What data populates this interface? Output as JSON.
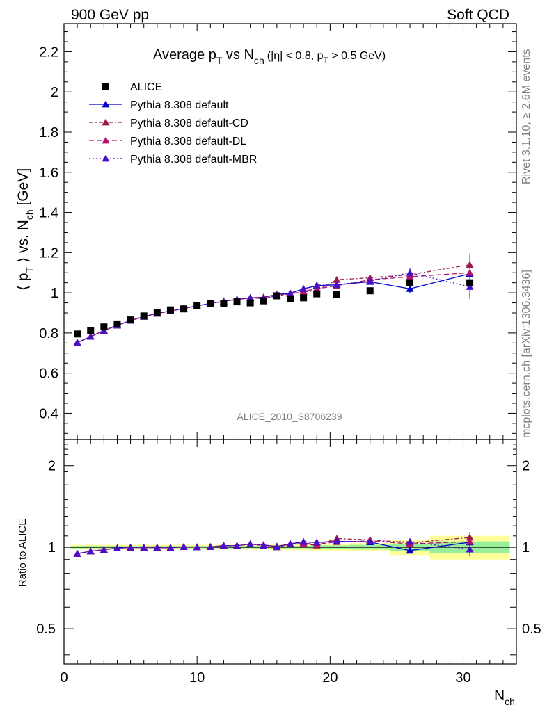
{
  "header": {
    "left": "900 GeV pp",
    "right": "Soft QCD"
  },
  "side_text": {
    "rivet": "Rivet 3.1.10, ≥ 2.6M events",
    "mcplots": "mcplots.cern.ch [arXiv:1306.3436]"
  },
  "chart_data": {
    "type": "scatter",
    "analysis_label": "ALICE_2010_S8706239",
    "title": {
      "t1": "Average p",
      "t1sub": "T",
      "t2": " vs N",
      "t2sub": "ch",
      "cut1": "(|η| < 0.8, p",
      "cut1sub": "T",
      "cut2": " > 0.5 GeV)"
    },
    "ylabel": {
      "a": "⟨ p",
      "asub": "T",
      "b": " ⟩ vs. N",
      "bsub": "ch",
      "c": " [GeV]"
    },
    "xlabel": {
      "main": "N",
      "sub": "ch"
    },
    "ratio_ylabel": "Ratio to ALICE",
    "xlim": [
      0,
      34
    ],
    "ylim": [
      0.27,
      2.34
    ],
    "ratio_ylim": [
      0.37,
      2.5
    ],
    "ratio_log": true,
    "x_ticks": [
      "0",
      "10",
      "20",
      "30"
    ],
    "y_ticks": [
      "0.4",
      "0.6",
      "0.8",
      "1",
      "1.2",
      "1.4",
      "1.6",
      "1.8",
      "2",
      "2.2"
    ],
    "ratio_ticks": [
      "0.5",
      "1",
      "2"
    ],
    "data": {
      "name": "ALICE",
      "x": [
        1,
        2,
        3,
        4,
        5,
        6,
        7,
        8,
        9,
        10,
        11,
        12,
        13,
        14,
        15,
        16,
        17,
        18,
        19,
        20.5,
        23,
        26,
        30.5
      ],
      "y": [
        0.795,
        0.81,
        0.83,
        0.845,
        0.865,
        0.885,
        0.9,
        0.915,
        0.92,
        0.935,
        0.945,
        0.945,
        0.955,
        0.95,
        0.96,
        0.985,
        0.97,
        0.975,
        0.995,
        0.99,
        1.01,
        1.05,
        1.05
      ],
      "bands": [
        {
          "x0": 0.5,
          "x1": 1.5,
          "inner": 0.01,
          "outer": 0.02
        },
        {
          "x0": 1.5,
          "x1": 2.5,
          "inner": 0.01,
          "outer": 0.02
        },
        {
          "x0": 2.5,
          "x1": 3.5,
          "inner": 0.01,
          "outer": 0.02
        },
        {
          "x0": 3.5,
          "x1": 4.5,
          "inner": 0.01,
          "outer": 0.02
        },
        {
          "x0": 4.5,
          "x1": 5.5,
          "inner": 0.01,
          "outer": 0.02
        },
        {
          "x0": 5.5,
          "x1": 6.5,
          "inner": 0.01,
          "outer": 0.02
        },
        {
          "x0": 6.5,
          "x1": 7.5,
          "inner": 0.01,
          "outer": 0.02
        },
        {
          "x0": 7.5,
          "x1": 8.5,
          "inner": 0.01,
          "outer": 0.02
        },
        {
          "x0": 8.5,
          "x1": 9.5,
          "inner": 0.01,
          "outer": 0.02
        },
        {
          "x0": 9.5,
          "x1": 10.5,
          "inner": 0.01,
          "outer": 0.02
        },
        {
          "x0": 10.5,
          "x1": 11.5,
          "inner": 0.01,
          "outer": 0.02
        },
        {
          "x0": 11.5,
          "x1": 12.5,
          "inner": 0.01,
          "outer": 0.02
        },
        {
          "x0": 12.5,
          "x1": 13.5,
          "inner": 0.01,
          "outer": 0.02
        },
        {
          "x0": 13.5,
          "x1": 14.5,
          "inner": 0.01,
          "outer": 0.02
        },
        {
          "x0": 14.5,
          "x1": 15.5,
          "inner": 0.01,
          "outer": 0.02
        },
        {
          "x0": 15.5,
          "x1": 16.5,
          "inner": 0.01,
          "outer": 0.025
        },
        {
          "x0": 16.5,
          "x1": 17.5,
          "inner": 0.01,
          "outer": 0.025
        },
        {
          "x0": 17.5,
          "x1": 18.5,
          "inner": 0.01,
          "outer": 0.025
        },
        {
          "x0": 18.5,
          "x1": 19.5,
          "inner": 0.015,
          "outer": 0.03
        },
        {
          "x0": 19.5,
          "x1": 21.5,
          "inner": 0.015,
          "outer": 0.03
        },
        {
          "x0": 21.5,
          "x1": 24.5,
          "inner": 0.02,
          "outer": 0.035
        },
        {
          "x0": 24.5,
          "x1": 27.5,
          "inner": 0.03,
          "outer": 0.065
        },
        {
          "x0": 27.5,
          "x1": 33.5,
          "inner": 0.05,
          "outer": 0.1
        }
      ]
    },
    "series": [
      {
        "name": "Pythia 8.308 default",
        "color": "#0000cc",
        "dash": "",
        "x": [
          1,
          2,
          3,
          4,
          5,
          6,
          7,
          8,
          9,
          10,
          11,
          12,
          13,
          14,
          15,
          16,
          17,
          18,
          19,
          20.5,
          23,
          26,
          30.5
        ],
        "y": [
          0.752,
          0.782,
          0.812,
          0.838,
          0.862,
          0.882,
          0.897,
          0.91,
          0.922,
          0.935,
          0.947,
          0.958,
          0.967,
          0.975,
          0.978,
          0.992,
          0.998,
          1.02,
          1.035,
          1.04,
          1.055,
          1.02,
          1.095
        ],
        "err": [
          0,
          0,
          0,
          0,
          0,
          0,
          0,
          0,
          0,
          0,
          0,
          0,
          0,
          0,
          0,
          0,
          0,
          0.005,
          0.005,
          0.008,
          0.012,
          0.02,
          0.035
        ]
      },
      {
        "name": "Pythia 8.308 default-CD",
        "color": "#9b1a4a",
        "dash": "6,3,2,3",
        "x": [
          1,
          2,
          3,
          4,
          5,
          6,
          7,
          8,
          9,
          10,
          11,
          12,
          13,
          14,
          15,
          16,
          17,
          18,
          19,
          20.5,
          23,
          26,
          30.5
        ],
        "y": [
          0.752,
          0.782,
          0.812,
          0.838,
          0.862,
          0.882,
          0.897,
          0.91,
          0.922,
          0.935,
          0.947,
          0.958,
          0.967,
          0.975,
          0.972,
          0.985,
          0.995,
          1.005,
          1.01,
          1.065,
          1.075,
          1.09,
          1.14
        ],
        "err": [
          0,
          0,
          0,
          0,
          0,
          0,
          0,
          0,
          0,
          0,
          0,
          0,
          0,
          0,
          0,
          0,
          0,
          0.005,
          0.005,
          0.008,
          0.012,
          0.025,
          0.055
        ]
      },
      {
        "name": "Pythia 8.308 default-DL",
        "color": "#b3126f",
        "dash": "7,4",
        "x": [
          1,
          2,
          3,
          4,
          5,
          6,
          7,
          8,
          9,
          10,
          11,
          12,
          13,
          14,
          15,
          16,
          17,
          18,
          19,
          20.5,
          23,
          26,
          30.5
        ],
        "y": [
          0.752,
          0.782,
          0.812,
          0.838,
          0.862,
          0.882,
          0.897,
          0.91,
          0.922,
          0.935,
          0.947,
          0.958,
          0.967,
          0.975,
          0.978,
          0.99,
          0.995,
          1.008,
          1.02,
          1.035,
          1.065,
          1.08,
          1.1
        ],
        "err": [
          0,
          0,
          0,
          0,
          0,
          0,
          0,
          0,
          0,
          0,
          0,
          0,
          0,
          0,
          0,
          0,
          0,
          0.005,
          0.005,
          0.008,
          0.012,
          0.025,
          0.045
        ]
      },
      {
        "name": "Pythia 8.308 default-MBR",
        "color": "#4a0fc4",
        "dash": "2,3",
        "x": [
          1,
          2,
          3,
          4,
          5,
          6,
          7,
          8,
          9,
          10,
          11,
          12,
          13,
          14,
          15,
          16,
          17,
          18,
          19,
          20.5,
          23,
          26,
          30.5
        ],
        "y": [
          0.752,
          0.782,
          0.812,
          0.838,
          0.862,
          0.882,
          0.897,
          0.91,
          0.922,
          0.935,
          0.947,
          0.958,
          0.967,
          0.975,
          0.972,
          0.985,
          0.998,
          1.02,
          1.038,
          1.04,
          1.06,
          1.1,
          1.03
        ],
        "err": [
          0,
          0,
          0,
          0,
          0,
          0,
          0,
          0,
          0,
          0,
          0,
          0,
          0,
          0,
          0,
          0,
          0,
          0.005,
          0.005,
          0.008,
          0.012,
          0.025,
          0.06
        ]
      }
    ]
  }
}
